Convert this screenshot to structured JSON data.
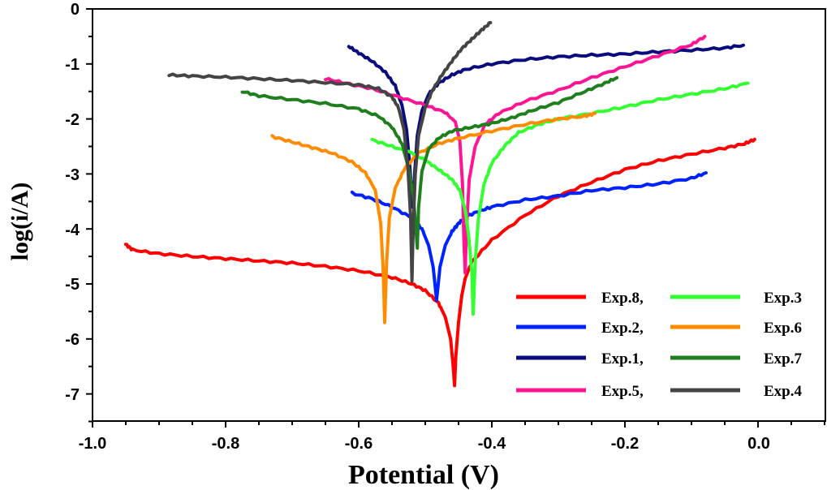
{
  "chart_data": {
    "type": "line",
    "title": "",
    "xlabel": "Potential (V)",
    "ylabel": "log(i/A)",
    "xlim": [
      -1.0,
      0.1
    ],
    "ylim": [
      -7.5,
      0
    ],
    "x_ticks": [
      "-1.0",
      "-0.8",
      "-0.6",
      "-0.4",
      "-0.2",
      "0.0"
    ],
    "y_ticks": [
      "0",
      "-1",
      "-2",
      "-3",
      "-4",
      "-5",
      "-6",
      "-7"
    ],
    "grid": false,
    "legend_position": "bottom-right",
    "series": [
      {
        "name": "Exp.8,",
        "color": "#ff0000",
        "ecorr": -0.456,
        "x_range": [
          -0.95,
          -0.005
        ],
        "points": [
          [
            -0.95,
            -4.28
          ],
          [
            -0.94,
            -4.38
          ],
          [
            -0.9,
            -4.45
          ],
          [
            -0.85,
            -4.5
          ],
          [
            -0.8,
            -4.54
          ],
          [
            -0.75,
            -4.58
          ],
          [
            -0.7,
            -4.62
          ],
          [
            -0.65,
            -4.68
          ],
          [
            -0.6,
            -4.76
          ],
          [
            -0.55,
            -4.88
          ],
          [
            -0.52,
            -5.0
          ],
          [
            -0.5,
            -5.12
          ],
          [
            -0.48,
            -5.35
          ],
          [
            -0.47,
            -5.6
          ],
          [
            -0.462,
            -6.0
          ],
          [
            -0.458,
            -6.5
          ],
          [
            -0.456,
            -6.85
          ],
          [
            -0.454,
            -6.3
          ],
          [
            -0.45,
            -5.7
          ],
          [
            -0.445,
            -5.2
          ],
          [
            -0.44,
            -4.9
          ],
          [
            -0.43,
            -4.6
          ],
          [
            -0.4,
            -4.2
          ],
          [
            -0.35,
            -3.75
          ],
          [
            -0.3,
            -3.4
          ],
          [
            -0.25,
            -3.15
          ],
          [
            -0.2,
            -2.92
          ],
          [
            -0.15,
            -2.76
          ],
          [
            -0.1,
            -2.64
          ],
          [
            -0.05,
            -2.53
          ],
          [
            -0.02,
            -2.45
          ],
          [
            -0.005,
            -2.37
          ]
        ]
      },
      {
        "name": "Exp.2,",
        "color": "#0022ff",
        "ecorr": -0.483,
        "x_range": [
          -0.61,
          -0.078
        ],
        "points": [
          [
            -0.61,
            -3.35
          ],
          [
            -0.58,
            -3.45
          ],
          [
            -0.55,
            -3.6
          ],
          [
            -0.52,
            -3.8
          ],
          [
            -0.505,
            -4.0
          ],
          [
            -0.495,
            -4.3
          ],
          [
            -0.488,
            -4.7
          ],
          [
            -0.483,
            -5.3
          ],
          [
            -0.478,
            -4.7
          ],
          [
            -0.47,
            -4.3
          ],
          [
            -0.46,
            -4.05
          ],
          [
            -0.45,
            -3.9
          ],
          [
            -0.44,
            -3.78
          ],
          [
            -0.42,
            -3.68
          ],
          [
            -0.4,
            -3.6
          ],
          [
            -0.35,
            -3.47
          ],
          [
            -0.3,
            -3.4
          ],
          [
            -0.25,
            -3.3
          ],
          [
            -0.2,
            -3.25
          ],
          [
            -0.15,
            -3.18
          ],
          [
            -0.1,
            -3.08
          ],
          [
            -0.078,
            -2.98
          ]
        ]
      },
      {
        "name": "Exp.1,",
        "color": "#0b0b80",
        "ecorr": -0.518,
        "x_range": [
          -0.615,
          -0.022
        ],
        "points": [
          [
            -0.615,
            -0.68
          ],
          [
            -0.6,
            -0.8
          ],
          [
            -0.58,
            -0.95
          ],
          [
            -0.56,
            -1.15
          ],
          [
            -0.545,
            -1.4
          ],
          [
            -0.535,
            -1.75
          ],
          [
            -0.528,
            -2.2
          ],
          [
            -0.523,
            -2.9
          ],
          [
            -0.519,
            -3.6
          ],
          [
            -0.516,
            -3.0
          ],
          [
            -0.512,
            -2.3
          ],
          [
            -0.505,
            -1.85
          ],
          [
            -0.495,
            -1.55
          ],
          [
            -0.48,
            -1.35
          ],
          [
            -0.46,
            -1.2
          ],
          [
            -0.44,
            -1.1
          ],
          [
            -0.4,
            -1.0
          ],
          [
            -0.35,
            -0.92
          ],
          [
            -0.3,
            -0.87
          ],
          [
            -0.25,
            -0.84
          ],
          [
            -0.2,
            -0.82
          ],
          [
            -0.15,
            -0.78
          ],
          [
            -0.1,
            -0.75
          ],
          [
            -0.05,
            -0.71
          ],
          [
            -0.022,
            -0.66
          ]
        ]
      },
      {
        "name": "Exp.5,",
        "color": "#ff1493",
        "ecorr": -0.441,
        "x_range": [
          -0.65,
          -0.08
        ],
        "points": [
          [
            -0.65,
            -1.27
          ],
          [
            -0.62,
            -1.35
          ],
          [
            -0.58,
            -1.45
          ],
          [
            -0.54,
            -1.6
          ],
          [
            -0.5,
            -1.75
          ],
          [
            -0.47,
            -1.88
          ],
          [
            -0.455,
            -2.05
          ],
          [
            -0.448,
            -2.4
          ],
          [
            -0.444,
            -3.2
          ],
          [
            -0.442,
            -4.2
          ],
          [
            -0.44,
            -4.8
          ],
          [
            -0.438,
            -4.0
          ],
          [
            -0.434,
            -3.1
          ],
          [
            -0.425,
            -2.5
          ],
          [
            -0.41,
            -2.1
          ],
          [
            -0.39,
            -1.9
          ],
          [
            -0.35,
            -1.68
          ],
          [
            -0.3,
            -1.48
          ],
          [
            -0.25,
            -1.25
          ],
          [
            -0.2,
            -1.05
          ],
          [
            -0.15,
            -0.85
          ],
          [
            -0.1,
            -0.65
          ],
          [
            -0.08,
            -0.5
          ]
        ]
      },
      {
        "name": "Exp.3",
        "color": "#33ff33",
        "ecorr": -0.428,
        "x_range": [
          -0.58,
          -0.015
        ],
        "points": [
          [
            -0.58,
            -2.38
          ],
          [
            -0.55,
            -2.5
          ],
          [
            -0.52,
            -2.62
          ],
          [
            -0.5,
            -2.75
          ],
          [
            -0.48,
            -2.92
          ],
          [
            -0.46,
            -3.1
          ],
          [
            -0.448,
            -3.3
          ],
          [
            -0.44,
            -3.65
          ],
          [
            -0.435,
            -4.1
          ],
          [
            -0.43,
            -4.8
          ],
          [
            -0.428,
            -5.55
          ],
          [
            -0.425,
            -4.6
          ],
          [
            -0.42,
            -3.8
          ],
          [
            -0.412,
            -3.2
          ],
          [
            -0.4,
            -2.8
          ],
          [
            -0.38,
            -2.48
          ],
          [
            -0.36,
            -2.25
          ],
          [
            -0.33,
            -2.1
          ],
          [
            -0.3,
            -2.0
          ],
          [
            -0.25,
            -1.9
          ],
          [
            -0.2,
            -1.78
          ],
          [
            -0.15,
            -1.65
          ],
          [
            -0.1,
            -1.55
          ],
          [
            -0.05,
            -1.45
          ],
          [
            -0.015,
            -1.35
          ]
        ]
      },
      {
        "name": "Exp.6",
        "color": "#ff8c00",
        "ecorr": -0.561,
        "x_range": [
          -0.73,
          -0.245
        ],
        "points": [
          [
            -0.73,
            -2.32
          ],
          [
            -0.7,
            -2.42
          ],
          [
            -0.67,
            -2.52
          ],
          [
            -0.64,
            -2.62
          ],
          [
            -0.61,
            -2.78
          ],
          [
            -0.59,
            -2.98
          ],
          [
            -0.575,
            -3.3
          ],
          [
            -0.567,
            -3.9
          ],
          [
            -0.563,
            -4.8
          ],
          [
            -0.561,
            -5.7
          ],
          [
            -0.558,
            -4.6
          ],
          [
            -0.554,
            -3.8
          ],
          [
            -0.545,
            -3.25
          ],
          [
            -0.53,
            -2.88
          ],
          [
            -0.51,
            -2.62
          ],
          [
            -0.48,
            -2.45
          ],
          [
            -0.45,
            -2.35
          ],
          [
            -0.4,
            -2.22
          ],
          [
            -0.35,
            -2.1
          ],
          [
            -0.3,
            -2.0
          ],
          [
            -0.26,
            -1.95
          ],
          [
            -0.245,
            -1.9
          ]
        ]
      },
      {
        "name": "Exp.7",
        "color": "#1f7f1f",
        "ecorr": -0.512,
        "x_range": [
          -0.775,
          -0.212
        ],
        "points": [
          [
            -0.775,
            -1.5
          ],
          [
            -0.75,
            -1.58
          ],
          [
            -0.7,
            -1.65
          ],
          [
            -0.65,
            -1.72
          ],
          [
            -0.6,
            -1.82
          ],
          [
            -0.57,
            -1.95
          ],
          [
            -0.55,
            -2.15
          ],
          [
            -0.535,
            -2.45
          ],
          [
            -0.525,
            -2.9
          ],
          [
            -0.518,
            -3.4
          ],
          [
            -0.514,
            -4.0
          ],
          [
            -0.512,
            -4.35
          ],
          [
            -0.51,
            -3.6
          ],
          [
            -0.505,
            -2.95
          ],
          [
            -0.495,
            -2.55
          ],
          [
            -0.48,
            -2.35
          ],
          [
            -0.46,
            -2.22
          ],
          [
            -0.43,
            -2.15
          ],
          [
            -0.4,
            -2.08
          ],
          [
            -0.37,
            -1.98
          ],
          [
            -0.34,
            -1.85
          ],
          [
            -0.3,
            -1.7
          ],
          [
            -0.26,
            -1.5
          ],
          [
            -0.23,
            -1.35
          ],
          [
            -0.212,
            -1.25
          ]
        ]
      },
      {
        "name": "Exp.4",
        "color": "#444444",
        "ecorr": -0.52,
        "x_range": [
          -0.885,
          -0.402
        ],
        "points": [
          [
            -0.885,
            -1.2
          ],
          [
            -0.85,
            -1.22
          ],
          [
            -0.8,
            -1.24
          ],
          [
            -0.75,
            -1.27
          ],
          [
            -0.7,
            -1.3
          ],
          [
            -0.65,
            -1.34
          ],
          [
            -0.6,
            -1.38
          ],
          [
            -0.57,
            -1.45
          ],
          [
            -0.55,
            -1.6
          ],
          [
            -0.54,
            -1.8
          ],
          [
            -0.532,
            -2.2
          ],
          [
            -0.526,
            -2.9
          ],
          [
            -0.522,
            -3.8
          ],
          [
            -0.52,
            -4.95
          ],
          [
            -0.518,
            -3.9
          ],
          [
            -0.515,
            -3.0
          ],
          [
            -0.51,
            -2.3
          ],
          [
            -0.5,
            -1.8
          ],
          [
            -0.49,
            -1.5
          ],
          [
            -0.475,
            -1.2
          ],
          [
            -0.46,
            -0.95
          ],
          [
            -0.445,
            -0.72
          ],
          [
            -0.43,
            -0.55
          ],
          [
            -0.415,
            -0.38
          ],
          [
            -0.402,
            -0.25
          ]
        ]
      }
    ]
  }
}
